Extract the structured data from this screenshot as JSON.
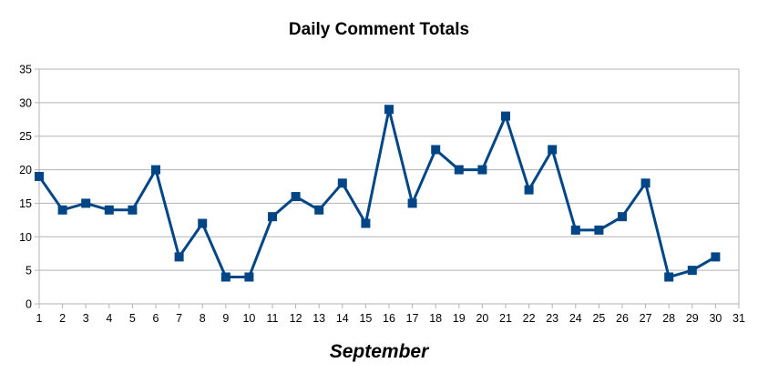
{
  "chart_data": {
    "type": "line",
    "title": "Daily Comment Totals",
    "xlabel": "September",
    "ylabel": "",
    "x": [
      1,
      2,
      3,
      4,
      5,
      6,
      7,
      8,
      9,
      10,
      11,
      12,
      13,
      14,
      15,
      16,
      17,
      18,
      19,
      20,
      21,
      22,
      23,
      24,
      25,
      26,
      27,
      28,
      29,
      30
    ],
    "xticks": [
      1,
      2,
      3,
      4,
      5,
      6,
      7,
      8,
      9,
      10,
      11,
      12,
      13,
      14,
      15,
      16,
      17,
      18,
      19,
      20,
      21,
      22,
      23,
      24,
      25,
      26,
      27,
      28,
      29,
      30,
      31
    ],
    "xlim": [
      1,
      31
    ],
    "yticks": [
      0,
      5,
      10,
      15,
      20,
      25,
      30,
      35
    ],
    "ylim": [
      0,
      35
    ],
    "grid": "horizontal",
    "legend": "none",
    "series": [
      {
        "values": [
          19,
          14,
          15,
          14,
          14,
          20,
          7,
          12,
          4,
          4,
          13,
          16,
          14,
          18,
          12,
          29,
          15,
          23,
          20,
          20,
          28,
          17,
          23,
          11,
          11,
          13,
          18,
          4,
          5,
          7
        ],
        "color": "#004586",
        "marker": "square"
      }
    ],
    "colors": {
      "grid": "#b3b3b3",
      "axis": "#b3b3b3",
      "line": "#004586"
    }
  }
}
